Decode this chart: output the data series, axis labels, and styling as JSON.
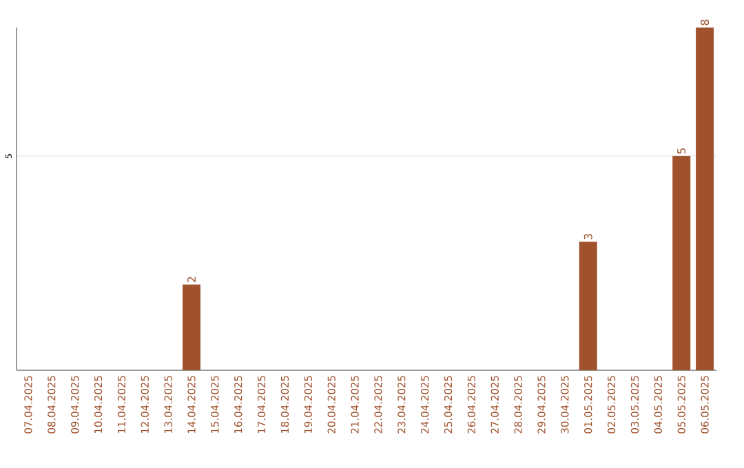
{
  "chart_data": {
    "type": "bar",
    "categories": [
      "07.04.2025",
      "08.04.2025",
      "09.04.2025",
      "10.04.2025",
      "11.04.2025",
      "12.04.2025",
      "13.04.2025",
      "14.04.2025",
      "15.04.2025",
      "16.04.2025",
      "17.04.2025",
      "18.04.2025",
      "19.04.2025",
      "20.04.2025",
      "21.04.2025",
      "22.04.2025",
      "23.04.2025",
      "24.04.2025",
      "25.04.2025",
      "26.04.2025",
      "27.04.2025",
      "28.04.2025",
      "29.04.2025",
      "30.04.2025",
      "01.05.2025",
      "02.05.2025",
      "03.05.2025",
      "04.05.2025",
      "05.05.2025",
      "06.05.2025"
    ],
    "values": [
      0,
      0,
      0,
      0,
      0,
      0,
      0,
      2,
      0,
      0,
      0,
      0,
      0,
      0,
      0,
      0,
      0,
      0,
      0,
      0,
      0,
      0,
      0,
      0,
      3,
      0,
      0,
      0,
      5,
      8
    ],
    "value_labels": [
      null,
      null,
      null,
      null,
      null,
      null,
      null,
      "2",
      null,
      null,
      null,
      null,
      null,
      null,
      null,
      null,
      null,
      null,
      null,
      null,
      null,
      null,
      null,
      null,
      "3",
      null,
      null,
      null,
      "5",
      "8"
    ],
    "color": "#a0522d",
    "ylim": [
      0,
      8
    ],
    "yticks": [
      5
    ],
    "grid": "y"
  }
}
